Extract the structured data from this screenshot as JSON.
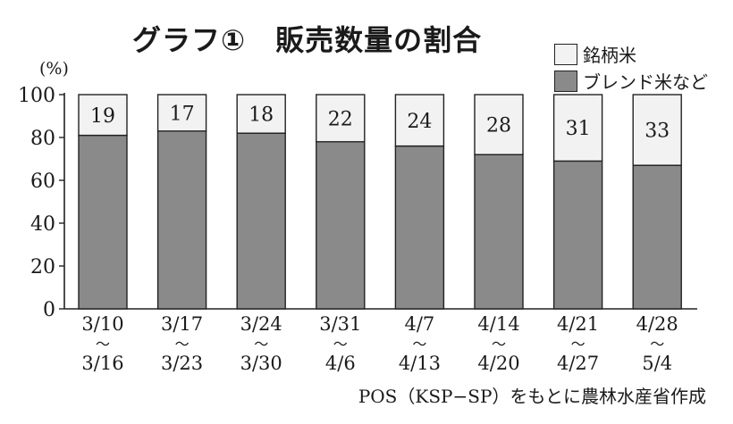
{
  "title": "グラフ①　販売数量の割合",
  "unit": "(%)",
  "source": "POS（KSP−SP）をもとに農林水産省作成",
  "colors": {
    "brand": "#8a8a8a",
    "blend": "#8a8a8a",
    "brand_rice": "#f2f2f2",
    "stroke": "#222222"
  },
  "legend": [
    {
      "label": "銘柄米",
      "color": "#f2f2f2"
    },
    {
      "label": "ブレンド米など",
      "color": "#8a8a8a"
    }
  ],
  "chart_data": {
    "type": "bar",
    "stacked": true,
    "title": "グラフ①　販売数量の割合",
    "ylabel": "(%)",
    "ylim": [
      0,
      100
    ],
    "yticks": [
      0,
      20,
      40,
      60,
      80,
      100
    ],
    "categories": [
      {
        "start": "3/10",
        "end": "3/16"
      },
      {
        "start": "3/17",
        "end": "3/23"
      },
      {
        "start": "3/24",
        "end": "3/30"
      },
      {
        "start": "3/31",
        "end": "4/6"
      },
      {
        "start": "4/7",
        "end": "4/13"
      },
      {
        "start": "4/14",
        "end": "4/20"
      },
      {
        "start": "4/21",
        "end": "4/27"
      },
      {
        "start": "4/28",
        "end": "5/4"
      }
    ],
    "range_mark": "～",
    "series": [
      {
        "name": "ブレンド米など",
        "values": [
          81,
          83,
          82,
          78,
          76,
          72,
          69,
          67
        ],
        "color": "#8a8a8a"
      },
      {
        "name": "銘柄米",
        "values": [
          19,
          17,
          18,
          22,
          24,
          28,
          31,
          33
        ],
        "color": "#f2f2f2",
        "labeled": true
      }
    ],
    "legend_position": "top-right",
    "grid": false
  }
}
